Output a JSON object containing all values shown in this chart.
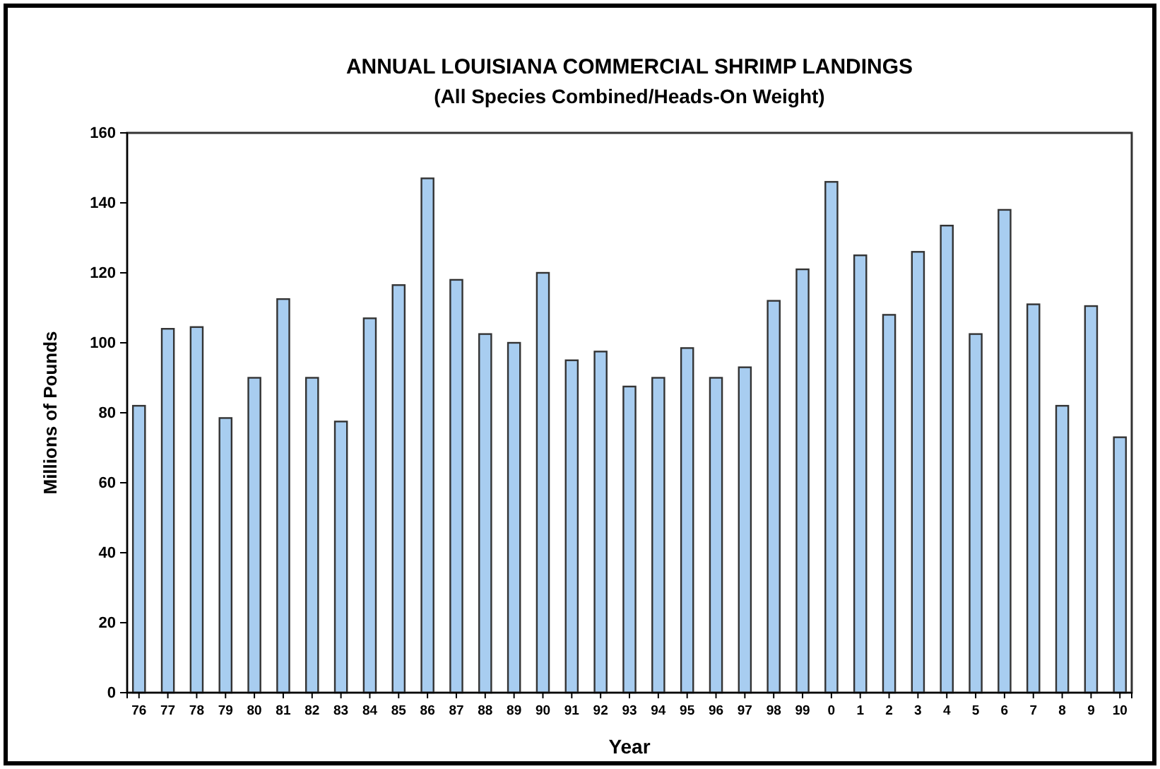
{
  "chart_data": {
    "type": "bar",
    "title": "ANNUAL LOUISIANA COMMERCIAL SHRIMP LANDINGS",
    "subtitle": "(All Species Combined/Heads-On Weight)",
    "xlabel": "Year",
    "ylabel": "Millions of Pounds",
    "categories": [
      "76",
      "77",
      "78",
      "79",
      "80",
      "81",
      "82",
      "83",
      "84",
      "85",
      "86",
      "87",
      "88",
      "89",
      "90",
      "91",
      "92",
      "93",
      "94",
      "95",
      "96",
      "97",
      "98",
      "99",
      "0",
      "1",
      "2",
      "3",
      "4",
      "5",
      "6",
      "7",
      "8",
      "9",
      "10"
    ],
    "values": [
      82,
      104,
      104.5,
      78.5,
      90,
      112.5,
      90,
      77.5,
      107,
      116.5,
      147,
      118,
      102.5,
      100,
      120,
      95,
      97.5,
      87.5,
      90,
      98.5,
      90,
      93,
      112,
      121,
      146,
      125,
      108,
      126,
      133.5,
      102.5,
      138,
      111,
      82,
      110.5,
      73
    ],
    "color": "#a8cdf0",
    "ylim": [
      0,
      160
    ],
    "yticks": [
      0,
      20,
      40,
      60,
      80,
      100,
      120,
      140,
      160
    ],
    "grid": false
  }
}
